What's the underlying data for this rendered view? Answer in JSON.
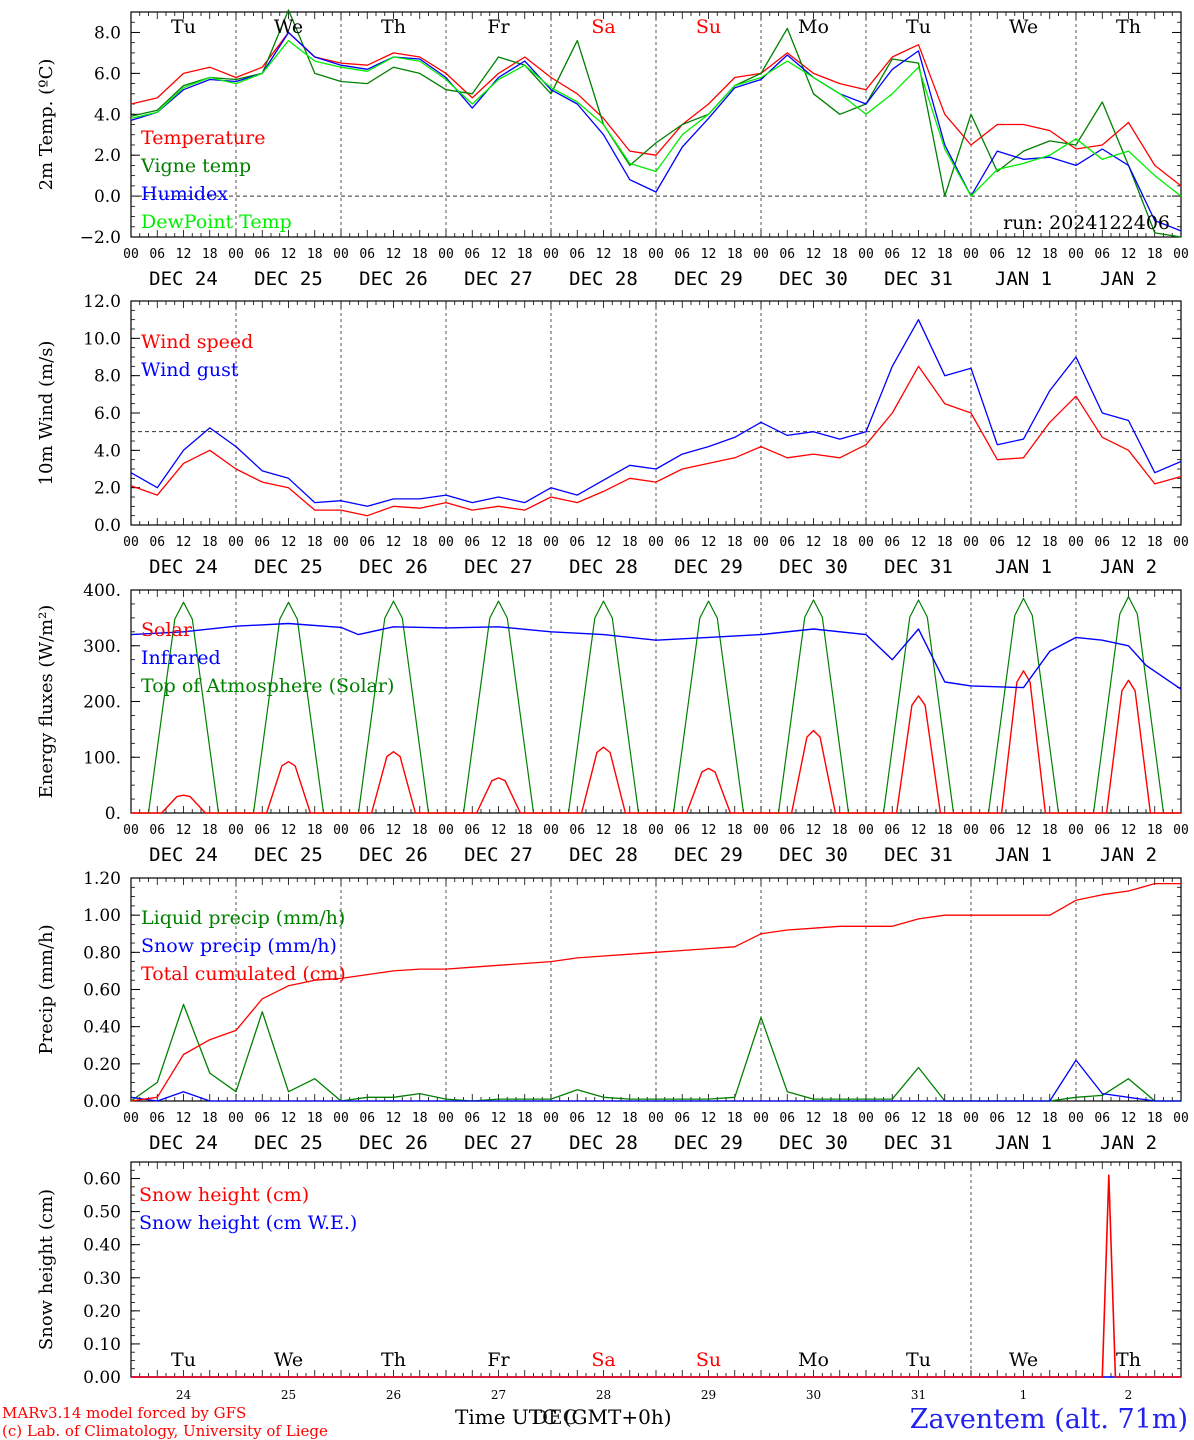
{
  "chart_data": [
    {
      "type": "line",
      "ylabel": "2m Temp. (ºC)",
      "ylim": [
        -2.0,
        9.0
      ],
      "yticks": [
        -2.0,
        0.0,
        2.0,
        4.0,
        6.0,
        8.0
      ],
      "ytick_labels": [
        "−2.0",
        "0.0",
        "2.0",
        "4.0",
        "6.0",
        "8.0"
      ],
      "hline": 0.0,
      "annotation": "run: 2024122406",
      "x_hours": [
        0,
        6,
        12,
        18,
        24,
        30,
        36,
        42,
        48,
        54,
        60,
        66,
        72,
        78,
        84,
        90,
        96,
        102,
        108,
        114,
        120,
        126,
        132,
        138,
        144,
        150,
        156,
        162,
        168,
        174,
        180,
        186,
        192,
        198,
        204,
        210,
        216,
        222,
        228,
        234,
        240
      ],
      "series": [
        {
          "name": "Temperature",
          "color": "#ff0000",
          "values": [
            4.5,
            4.8,
            6.0,
            6.3,
            5.8,
            6.3,
            8.0,
            6.8,
            6.5,
            6.4,
            7.0,
            6.8,
            6.0,
            4.8,
            6.0,
            6.8,
            5.8,
            5.0,
            3.8,
            2.2,
            2.0,
            3.5,
            4.5,
            5.8,
            6.0,
            7.0,
            6.0,
            5.5,
            5.2,
            6.8,
            7.4,
            4.0,
            2.5,
            3.5,
            3.5,
            3.2,
            2.3,
            2.5,
            3.6,
            1.5,
            0.5
          ]
        },
        {
          "name": "Vigne temp",
          "color": "#008000",
          "values": [
            3.9,
            4.2,
            5.4,
            5.8,
            5.7,
            6.0,
            9.1,
            6.0,
            5.6,
            5.5,
            6.3,
            6.0,
            5.2,
            5.0,
            6.8,
            6.4,
            5.0,
            7.6,
            3.5,
            1.5,
            2.6,
            3.5,
            4.0,
            5.4,
            6.0,
            8.2,
            5.0,
            4.0,
            4.5,
            6.7,
            6.5,
            0.0,
            4.0,
            1.2,
            2.2,
            2.7,
            2.5,
            4.6,
            1.5,
            -1.8,
            -2.0
          ]
        },
        {
          "name": "Humidex",
          "color": "#0000ff",
          "values": [
            3.7,
            4.1,
            5.2,
            5.7,
            5.6,
            6.0,
            8.0,
            6.8,
            6.4,
            6.2,
            6.8,
            6.7,
            5.8,
            4.3,
            5.8,
            6.6,
            5.2,
            4.5,
            3.0,
            0.8,
            0.2,
            2.4,
            3.8,
            5.3,
            5.7,
            6.9,
            5.8,
            5.0,
            4.5,
            6.2,
            7.1,
            2.5,
            0.0,
            2.2,
            1.8,
            1.9,
            1.5,
            2.3,
            1.5,
            -1.2,
            -1.7
          ]
        },
        {
          "name": "DewPoint Temp",
          "color": "#00ee00",
          "values": [
            3.8,
            4.1,
            5.3,
            5.8,
            5.5,
            6.0,
            7.6,
            6.6,
            6.3,
            6.1,
            6.8,
            6.6,
            5.7,
            4.5,
            5.7,
            6.4,
            5.3,
            4.6,
            3.5,
            1.6,
            1.2,
            3.0,
            4.0,
            5.4,
            5.8,
            6.6,
            5.8,
            5.0,
            4.0,
            5.0,
            6.3,
            2.3,
            0.0,
            1.3,
            1.6,
            2.0,
            2.8,
            1.8,
            2.2,
            1.0,
            0.0
          ]
        }
      ]
    },
    {
      "type": "line",
      "ylabel": "10m Wind (m/s)",
      "ylim": [
        0.0,
        12.0
      ],
      "yticks": [
        0.0,
        2.0,
        4.0,
        6.0,
        8.0,
        10.0,
        12.0
      ],
      "ytick_labels": [
        "0.0",
        "2.0",
        "4.0",
        "6.0",
        "8.0",
        "10.0",
        "12.0"
      ],
      "hline": 5.0,
      "x_hours": [
        0,
        6,
        12,
        18,
        24,
        30,
        36,
        42,
        48,
        54,
        60,
        66,
        72,
        78,
        84,
        90,
        96,
        102,
        108,
        114,
        120,
        126,
        132,
        138,
        144,
        150,
        156,
        162,
        168,
        174,
        180,
        186,
        192,
        198,
        204,
        210,
        216,
        222,
        228,
        234,
        240
      ],
      "series": [
        {
          "name": "Wind speed",
          "color": "#ff0000",
          "values": [
            2.1,
            1.6,
            3.3,
            4.0,
            3.0,
            2.3,
            2.0,
            0.8,
            0.8,
            0.5,
            1.0,
            0.9,
            1.2,
            0.8,
            1.0,
            0.8,
            1.5,
            1.2,
            1.8,
            2.5,
            2.3,
            3.0,
            3.3,
            3.6,
            4.2,
            3.6,
            3.8,
            3.6,
            4.3,
            6.0,
            8.5,
            6.5,
            6.0,
            3.5,
            3.6,
            5.5,
            6.9,
            4.7,
            4.0,
            2.2,
            2.6
          ]
        },
        {
          "name": "Wind gust",
          "color": "#0000ff",
          "values": [
            2.8,
            2.0,
            4.0,
            5.2,
            4.2,
            2.9,
            2.5,
            1.2,
            1.3,
            1.0,
            1.4,
            1.4,
            1.6,
            1.2,
            1.5,
            1.2,
            2.0,
            1.6,
            2.4,
            3.2,
            3.0,
            3.8,
            4.2,
            4.7,
            5.5,
            4.8,
            5.0,
            4.6,
            5.0,
            8.5,
            11.0,
            8.0,
            8.4,
            4.3,
            4.6,
            7.2,
            9.0,
            6.0,
            5.6,
            2.8,
            3.4
          ]
        }
      ]
    },
    {
      "type": "line",
      "ylabel": "Energy fluxes (W/m²)",
      "ylim": [
        0,
        400
      ],
      "yticks": [
        0,
        100,
        200,
        300,
        400
      ],
      "ytick_labels": [
        "0.",
        "100.",
        "200.",
        "300.",
        "400."
      ],
      "infrared": {
        "name": "Infrared",
        "color": "#0000ff",
        "x_hours": [
          0,
          12,
          24,
          36,
          48,
          52,
          60,
          72,
          84,
          96,
          108,
          120,
          132,
          144,
          156,
          168,
          174,
          180,
          186,
          192,
          204,
          210,
          216,
          222,
          228,
          232,
          240
        ],
        "values": [
          320,
          325,
          335,
          340,
          333,
          320,
          334,
          332,
          334,
          325,
          320,
          310,
          315,
          320,
          330,
          320,
          275,
          330,
          235,
          228,
          225,
          290,
          315,
          310,
          300,
          265,
          222
        ]
      },
      "daily_peaks": {
        "day_center_hours": [
          12,
          36,
          60,
          84,
          108,
          132,
          156,
          180,
          204,
          228
        ],
        "solar": {
          "name": "Solar",
          "color": "#ff0000",
          "values": [
            32,
            92,
            110,
            63,
            118,
            80,
            148,
            210,
            255,
            238
          ]
        },
        "top_of_atmosphere": {
          "name": "Top of Atmosphere (Solar)",
          "color": "#008000",
          "values": [
            378,
            378,
            380,
            380,
            380,
            380,
            382,
            382,
            385,
            388
          ]
        }
      }
    },
    {
      "type": "line",
      "ylabel": "Precip (mm/h)",
      "ylim": [
        0.0,
        1.2
      ],
      "yticks": [
        0.0,
        0.2,
        0.4,
        0.6,
        0.8,
        1.0,
        1.2
      ],
      "ytick_labels": [
        "0.00",
        "0.20",
        "0.40",
        "0.60",
        "0.80",
        "1.00",
        "1.20"
      ],
      "x_hours": [
        0,
        6,
        12,
        18,
        24,
        30,
        36,
        42,
        48,
        54,
        60,
        66,
        72,
        78,
        84,
        90,
        96,
        102,
        108,
        114,
        120,
        126,
        132,
        138,
        144,
        150,
        156,
        162,
        168,
        174,
        180,
        186,
        192,
        198,
        204,
        210,
        216,
        222,
        228,
        234,
        240
      ],
      "series": [
        {
          "name": "Liquid precip (mm/h)",
          "color": "#008000",
          "values": [
            0.0,
            0.1,
            0.52,
            0.15,
            0.05,
            0.48,
            0.05,
            0.12,
            0.0,
            0.02,
            0.02,
            0.04,
            0.01,
            0.0,
            0.01,
            0.01,
            0.01,
            0.06,
            0.02,
            0.01,
            0.01,
            0.01,
            0.01,
            0.02,
            0.45,
            0.05,
            0.01,
            0.01,
            0.01,
            0.01,
            0.18,
            0.0,
            0.0,
            0.0,
            0.0,
            0.0,
            0.02,
            0.03,
            0.12,
            0.0,
            0.0
          ]
        },
        {
          "name": "Snow precip (mm/h)",
          "color": "#0000ff",
          "values": [
            0.02,
            0.0,
            0.05,
            0.0,
            0.0,
            0.0,
            0.0,
            0.0,
            0.0,
            0.0,
            0.0,
            0.0,
            0.0,
            0.0,
            0.0,
            0.0,
            0.0,
            0.0,
            0.0,
            0.0,
            0.0,
            0.0,
            0.0,
            0.0,
            0.0,
            0.0,
            0.0,
            0.0,
            0.0,
            0.0,
            0.0,
            0.0,
            0.0,
            0.0,
            0.0,
            0.0,
            0.22,
            0.04,
            0.02,
            0.0,
            0.0
          ]
        },
        {
          "name": "Total cumulated (cm)",
          "color": "#ff0000",
          "values": [
            0.0,
            0.02,
            0.25,
            0.33,
            0.38,
            0.55,
            0.62,
            0.65,
            0.66,
            0.68,
            0.7,
            0.71,
            0.71,
            0.72,
            0.73,
            0.74,
            0.75,
            0.77,
            0.78,
            0.79,
            0.8,
            0.81,
            0.82,
            0.83,
            0.9,
            0.92,
            0.93,
            0.94,
            0.94,
            0.94,
            0.98,
            1.0,
            1.0,
            1.0,
            1.0,
            1.0,
            1.08,
            1.11,
            1.13,
            1.17,
            1.17
          ]
        }
      ]
    },
    {
      "type": "line",
      "ylabel": "Snow height (cm)",
      "ylim": [
        0.0,
        0.65
      ],
      "yticks": [
        0.0,
        0.1,
        0.2,
        0.3,
        0.4,
        0.5,
        0.6
      ],
      "ytick_labels": [
        "0.00",
        "0.10",
        "0.20",
        "0.30",
        "0.40",
        "0.50",
        "0.60"
      ],
      "x_hours": [
        0,
        220,
        222,
        223.5,
        225,
        227,
        240
      ],
      "series": [
        {
          "name": "Snow height (cm)",
          "color": "#ff0000",
          "values": [
            0.0,
            0.0,
            0.0,
            0.61,
            0.0,
            0.0,
            0.0
          ]
        },
        {
          "name": "Snow height (cm W.E.)",
          "color": "#0000ff",
          "values": [
            0.0,
            0.0,
            0.0,
            0.0,
            0.0,
            0.0,
            0.0
          ]
        }
      ],
      "xlabel": "Time UTC (GMT+0h)"
    }
  ],
  "weekdays": [
    {
      "label": "Tu",
      "weekend": false
    },
    {
      "label": "We",
      "weekend": false
    },
    {
      "label": "Th",
      "weekend": false
    },
    {
      "label": "Fr",
      "weekend": false
    },
    {
      "label": "Sa",
      "weekend": true
    },
    {
      "label": "Su",
      "weekend": true
    },
    {
      "label": "Mo",
      "weekend": false
    },
    {
      "label": "Tu",
      "weekend": false
    },
    {
      "label": "We",
      "weekend": false
    },
    {
      "label": "Th",
      "weekend": false
    }
  ],
  "dates": [
    "DEC 24",
    "DEC 25",
    "DEC 26",
    "DEC 27",
    "DEC 28",
    "DEC 29",
    "DEC 30",
    "DEC 31",
    "JAN  1",
    "JAN  2"
  ],
  "day_numbers": [
    "24",
    "25",
    "26",
    "27",
    "28",
    "29",
    "30",
    "31",
    "1",
    "2"
  ],
  "hour_labels": [
    "00",
    "06",
    "12",
    "18"
  ],
  "final_hour_label": "00",
  "month_overlay": "DEC",
  "footer": {
    "model": "MARv3.14 model forced by GFS",
    "lab": "(c) Lab. of Climatology, University of Liege",
    "station": "Zaventem (alt. 71m)",
    "xlabel": "Time UTC (GMT+0h)"
  },
  "colors": {
    "red": "#ff0000",
    "green": "#008000",
    "light_green": "#00ee00",
    "blue": "#0000ff",
    "weekend": "#ff0000",
    "station": "#2222ee"
  }
}
